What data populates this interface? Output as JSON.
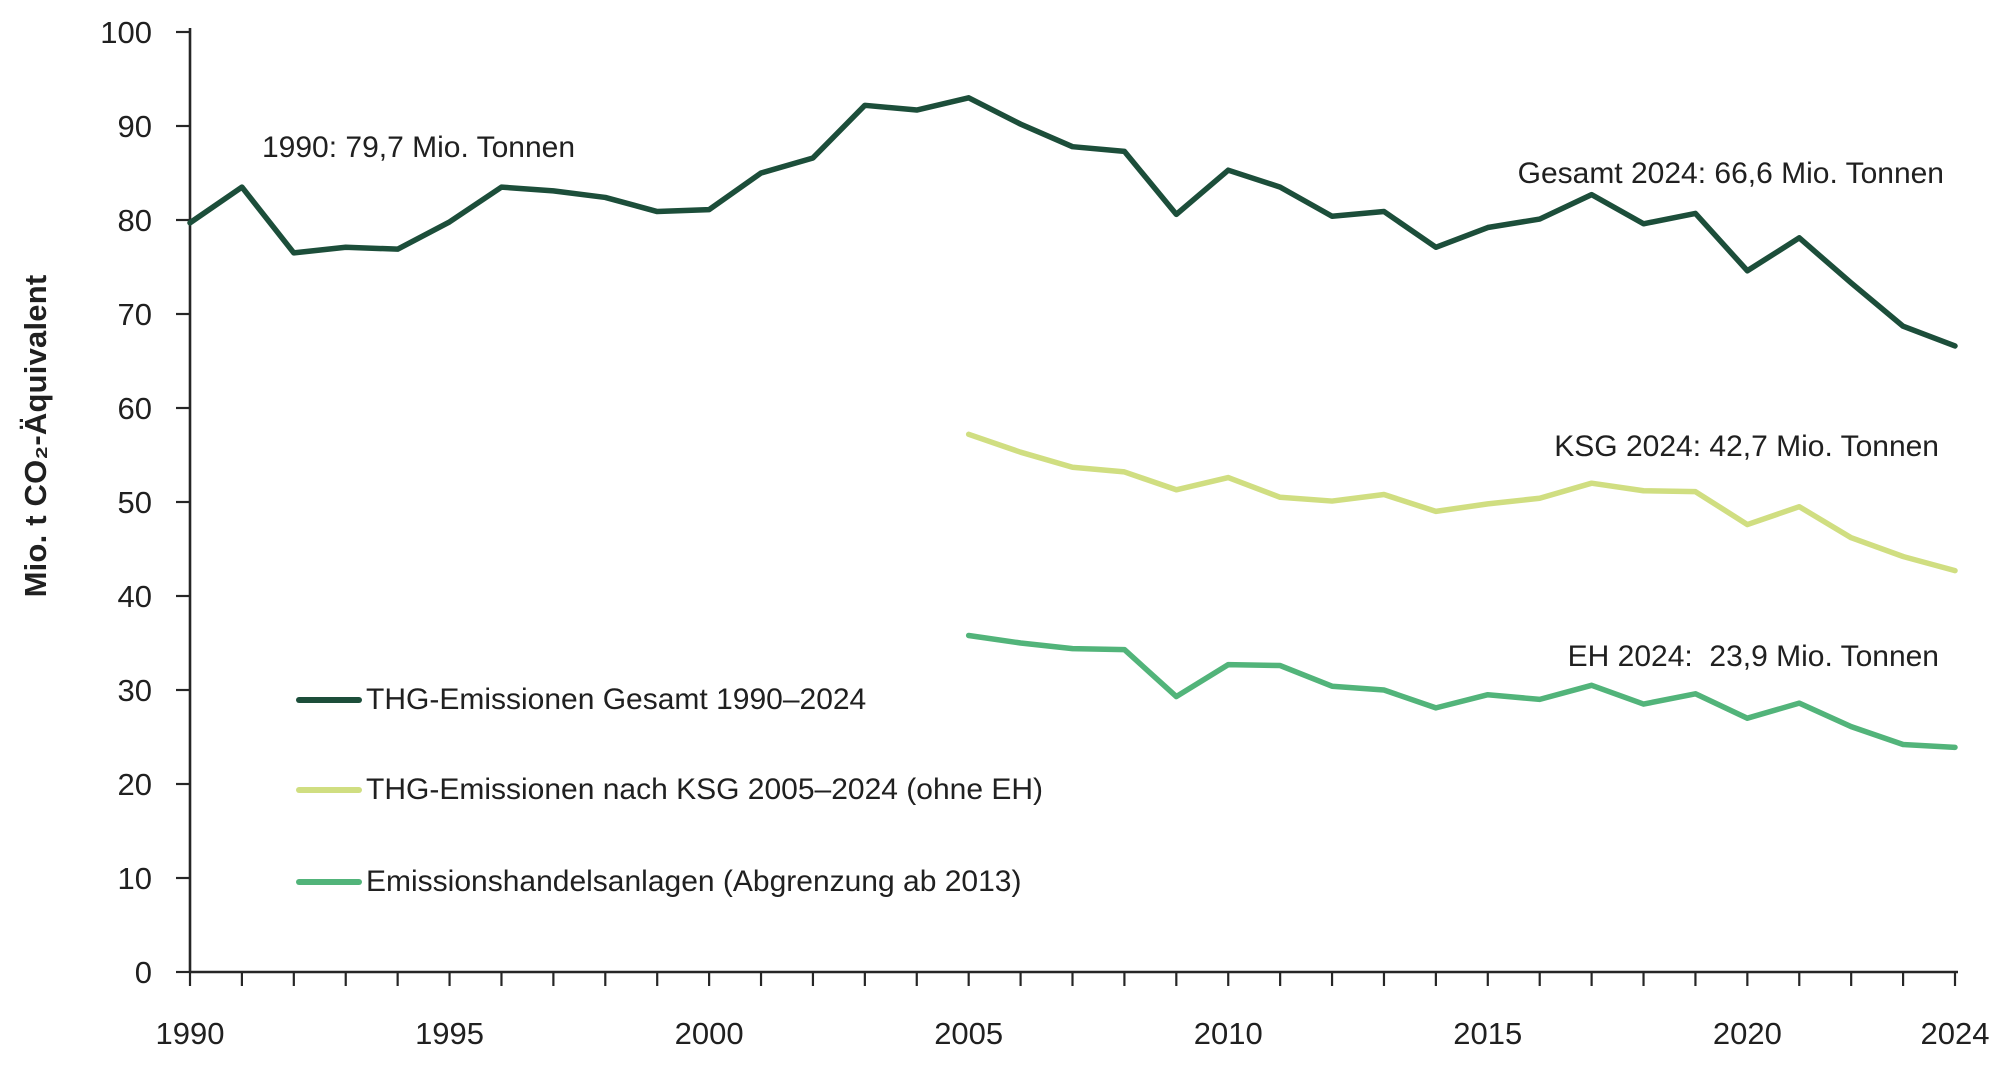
{
  "colors": {
    "total_line": "#1c4e3a",
    "ksg_line": "#d0de81",
    "eh_line": "#52b47a",
    "axis": "#262626",
    "text": "#202020",
    "background": "#ffffff"
  },
  "y_axis": {
    "title": "Mio. t CO₂-Äquivalent"
  },
  "annotations": {
    "start_1990": "1990: 79,7 Mio. Tonnen",
    "gesamt_2024": "Gesamt 2024: 66,6 Mio. Tonnen",
    "ksg_2024": "KSG 2024: 42,7 Mio. Tonnen",
    "eh_2024": "EH 2024:  23,9 Mio. Tonnen"
  },
  "chart_data": {
    "type": "line",
    "title": "",
    "xlabel": "",
    "ylabel": "Mio. t CO₂-Äquivalent",
    "ylim": [
      0,
      100
    ],
    "xlim": [
      1990,
      2024
    ],
    "grid": false,
    "legend_position": "inside-lower-left",
    "y_ticks": [
      0,
      10,
      20,
      30,
      40,
      50,
      60,
      70,
      80,
      90,
      100
    ],
    "x_tick_labels": [
      1990,
      1995,
      2000,
      2005,
      2010,
      2015,
      2020,
      2024
    ],
    "x_minor_tick_step_years": 1,
    "series": [
      {
        "name": "THG-Emissionen Gesamt 1990–2024",
        "color": "#1c4e3a",
        "start_year": 1990,
        "values": [
          79.7,
          83.5,
          76.5,
          77.1,
          76.9,
          79.8,
          83.5,
          83.1,
          82.4,
          80.9,
          81.1,
          85.0,
          86.6,
          92.2,
          91.7,
          93.0,
          90.2,
          87.8,
          87.3,
          80.6,
          85.3,
          83.5,
          80.4,
          80.9,
          77.1,
          79.2,
          80.1,
          82.7,
          79.6,
          80.7,
          74.6,
          78.1,
          73.3,
          68.7,
          66.6
        ]
      },
      {
        "name": "THG-Emissionen nach KSG 2005–2024 (ohne EH)",
        "color": "#d0de81",
        "start_year": 2005,
        "values": [
          57.2,
          55.3,
          53.7,
          53.2,
          51.3,
          52.6,
          50.5,
          50.1,
          50.8,
          49.0,
          49.8,
          50.4,
          52.0,
          51.2,
          51.1,
          47.6,
          49.5,
          46.2,
          44.2,
          42.7
        ]
      },
      {
        "name": "Emissionshandelsanlagen (Abgrenzung ab 2013)",
        "color": "#52b47a",
        "start_year": 2005,
        "values": [
          35.8,
          35.0,
          34.4,
          34.3,
          29.3,
          32.7,
          32.6,
          30.4,
          30.0,
          28.1,
          29.5,
          29.0,
          30.5,
          28.5,
          29.6,
          27.0,
          28.6,
          26.1,
          24.2,
          23.9
        ]
      }
    ]
  }
}
